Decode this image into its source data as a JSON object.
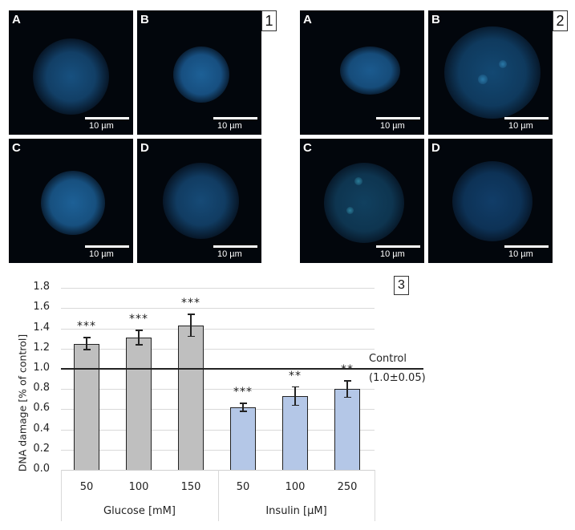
{
  "figure_groups": [
    {
      "label": "1",
      "panels": [
        {
          "letter": "A",
          "scale": "10 µm"
        },
        {
          "letter": "B",
          "scale": "10 µm"
        },
        {
          "letter": "C",
          "scale": "10 µm"
        },
        {
          "letter": "D",
          "scale": "10 µm"
        }
      ]
    },
    {
      "label": "2",
      "panels": [
        {
          "letter": "A",
          "scale": "10 µm"
        },
        {
          "letter": "B",
          "scale": "10 µm"
        },
        {
          "letter": "C",
          "scale": "10 µm"
        },
        {
          "letter": "D",
          "scale": "10 µm"
        }
      ]
    }
  ],
  "chart_label": "3",
  "colors": {
    "glucose_bar": "#bfbfbf",
    "insulin_bar": "#b4c7e7",
    "panel_bg": "#02060c",
    "nucleus": "#1a5a8c"
  },
  "chart_data": {
    "type": "bar",
    "title": "",
    "xlabel": "",
    "ylabel": "DNA damage [% of control]",
    "ylim": [
      0.0,
      1.8
    ],
    "yticks": [
      "0.0",
      "0.2",
      "0.4",
      "0.6",
      "0.8",
      "1.0",
      "1.2",
      "1.4",
      "1.6",
      "1.8"
    ],
    "grid": true,
    "groups": [
      {
        "name": "Glucose [mM]",
        "categories": [
          "50",
          "100",
          "150"
        ]
      },
      {
        "name": "Insulin [µM]",
        "categories": [
          "50",
          "100",
          "250"
        ]
      }
    ],
    "categories": [
      "50",
      "100",
      "150",
      "50",
      "100",
      "250"
    ],
    "series": [
      {
        "name": "DNA damage",
        "values": [
          1.25,
          1.31,
          1.43,
          0.62,
          0.73,
          0.8
        ],
        "errors": [
          0.06,
          0.07,
          0.11,
          0.04,
          0.09,
          0.08
        ],
        "significance": [
          "***",
          "***",
          "***",
          "***",
          "**",
          "**"
        ]
      }
    ],
    "reference_line": {
      "value": 1.0,
      "label": "Control",
      "sublabel": "(1.0±0.05)"
    }
  }
}
